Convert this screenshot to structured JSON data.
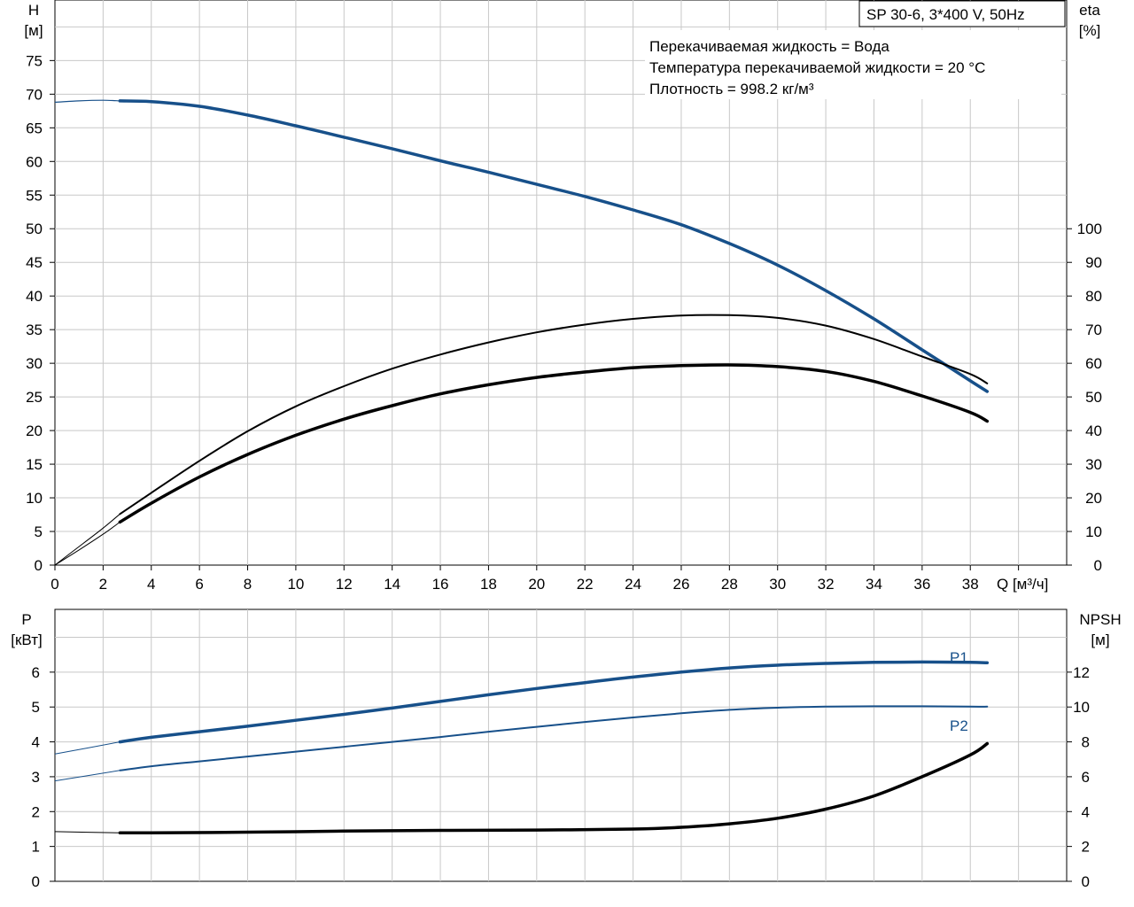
{
  "chart_data": [
    {
      "type": "line",
      "title": "SP 30-6, 3*400 V, 50Hz",
      "xlabel": "Q [м³/ч]",
      "ylabel": "H",
      "ylabel_unit": "[м]",
      "y2label": "eta",
      "y2label_unit": "[%]",
      "xlim": [
        0,
        42
      ],
      "ylim": [
        0,
        84
      ],
      "y2lim": [
        0,
        168
      ],
      "x_ticks": [
        0,
        2,
        4,
        6,
        8,
        10,
        12,
        14,
        16,
        18,
        20,
        22,
        24,
        26,
        28,
        30,
        32,
        34,
        36,
        38
      ],
      "y_ticks": [
        0,
        5,
        10,
        15,
        20,
        25,
        30,
        35,
        40,
        45,
        50,
        55,
        60,
        65,
        70,
        75
      ],
      "y2_ticks": [
        0,
        10,
        20,
        30,
        40,
        50,
        60,
        70,
        80,
        90,
        100
      ],
      "grid": true,
      "notes": [
        "Перекачиваемая жидкость = Вода",
        "Температура перекачиваемой жидкости = 20 °C",
        "Плотность = 998.2 кг/м³"
      ],
      "series": [
        {
          "key": "H",
          "axis": "left",
          "color": "#17508a",
          "x": [
            0,
            1,
            2,
            2.7,
            4,
            6,
            8,
            10,
            12,
            14,
            16,
            18,
            20,
            22,
            24,
            26,
            28,
            30,
            32,
            34,
            36,
            37,
            38,
            38.7
          ],
          "y": [
            68.8,
            69.0,
            69.1,
            69.0,
            68.9,
            68.2,
            66.9,
            65.3,
            63.6,
            61.9,
            60.1,
            58.4,
            56.6,
            54.8,
            52.8,
            50.6,
            47.8,
            44.6,
            40.8,
            36.6,
            32.0,
            29.7,
            27.4,
            25.8
          ],
          "dashed_until": 2.7
        },
        {
          "key": "eta",
          "axis": "right",
          "color": "#000000",
          "x": [
            0,
            1,
            2,
            2.7,
            4,
            6,
            8,
            10,
            12,
            14,
            16,
            18,
            20,
            22,
            24,
            26,
            28,
            30,
            32,
            34,
            36,
            38,
            38.7
          ],
          "y": [
            0,
            5.5,
            11.0,
            15.2,
            21.5,
            31.0,
            39.8,
            47.2,
            53.2,
            58.4,
            62.6,
            66.2,
            69.2,
            71.5,
            73.2,
            74.2,
            74.3,
            73.5,
            71.2,
            67.2,
            62.0,
            56.8,
            54.0
          ],
          "dashed_until": 2.7
        },
        {
          "key": "eta",
          "axis": "right",
          "color": "#000000",
          "x": [
            0,
            1,
            2,
            2.7,
            4,
            6,
            8,
            10,
            12,
            14,
            16,
            18,
            20,
            22,
            24,
            26,
            28,
            30,
            32,
            34,
            36,
            38,
            38.7
          ],
          "y": [
            0,
            4.5,
            9.2,
            12.8,
            18.4,
            26.2,
            32.9,
            38.6,
            43.4,
            47.4,
            50.9,
            53.6,
            55.8,
            57.4,
            58.7,
            59.3,
            59.5,
            59.0,
            57.6,
            54.6,
            50.3,
            45.4,
            42.8
          ],
          "dashed_until": 2.7
        }
      ]
    },
    {
      "type": "line",
      "title": "",
      "xlabel": "",
      "ylabel": "P",
      "ylabel_unit": "[кВт]",
      "y2label": "NPSH",
      "y2label_unit": "[м]",
      "xlim": [
        0,
        42
      ],
      "ylim": [
        0,
        7.8
      ],
      "y2lim": [
        0,
        15.6
      ],
      "y_ticks": [
        0,
        1,
        2,
        3,
        4,
        5,
        6
      ],
      "y2_ticks": [
        0,
        2,
        4,
        6,
        8,
        10,
        12
      ],
      "grid": true,
      "series": [
        {
          "name": "P1",
          "axis": "left",
          "color": "#17508a",
          "x": [
            0,
            2.7,
            4,
            6,
            8,
            10,
            12,
            14,
            16,
            18,
            20,
            22,
            24,
            26,
            28,
            30,
            32,
            34,
            36,
            38,
            38.7
          ],
          "y": [
            3.65,
            4.0,
            4.13,
            4.29,
            4.45,
            4.62,
            4.79,
            4.97,
            5.16,
            5.35,
            5.53,
            5.7,
            5.86,
            6.0,
            6.12,
            6.2,
            6.25,
            6.28,
            6.29,
            6.28,
            6.27
          ],
          "dashed_until": 2.7
        },
        {
          "name": "P2",
          "axis": "left",
          "color": "#17508a",
          "x": [
            0,
            2.7,
            4,
            6,
            8,
            10,
            12,
            14,
            16,
            18,
            20,
            22,
            24,
            26,
            28,
            30,
            32,
            34,
            36,
            38,
            38.7
          ],
          "y": [
            2.88,
            3.18,
            3.3,
            3.44,
            3.58,
            3.72,
            3.86,
            4.0,
            4.14,
            4.29,
            4.43,
            4.57,
            4.7,
            4.82,
            4.92,
            4.98,
            5.01,
            5.02,
            5.02,
            5.01,
            5.01
          ],
          "dashed_until": 2.7
        },
        {
          "key": "NPSH",
          "axis": "right",
          "color": "#000000",
          "x": [
            0,
            2.7,
            4,
            8,
            12,
            16,
            20,
            24,
            26,
            28,
            30,
            32,
            34,
            36,
            38,
            38.7
          ],
          "y": [
            2.85,
            2.78,
            2.78,
            2.82,
            2.88,
            2.92,
            2.94,
            3.0,
            3.1,
            3.3,
            3.62,
            4.14,
            4.9,
            6.0,
            7.25,
            7.9
          ],
          "dashed_until": 2.7
        }
      ]
    }
  ]
}
